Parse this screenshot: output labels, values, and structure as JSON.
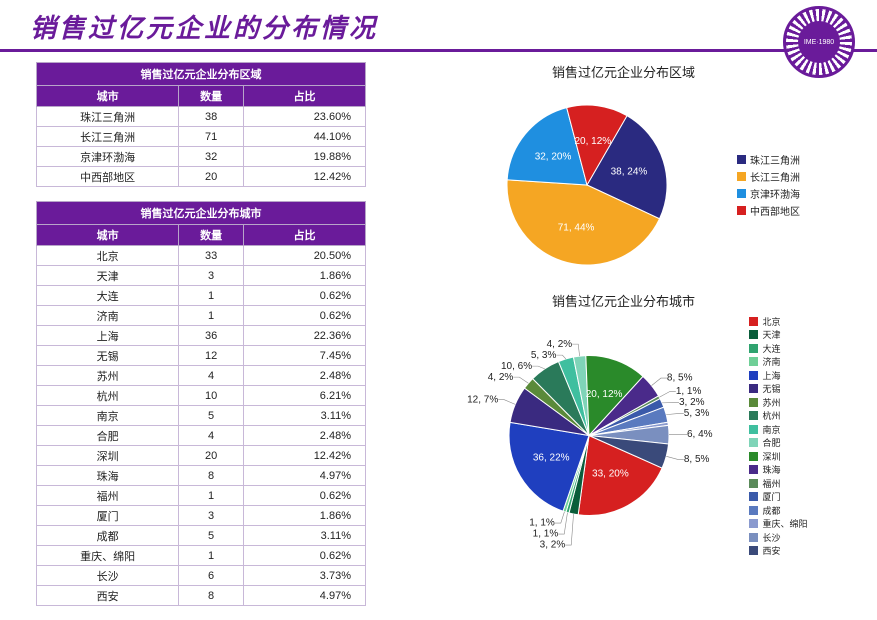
{
  "title": "销售过亿元企业的分布情况",
  "colors": {
    "brand": "#6a1b9a",
    "border": "#b8a5c9"
  },
  "table1": {
    "caption": "销售过亿元企业分布区域",
    "columns": [
      "城市",
      "数量",
      "占比"
    ],
    "rows": [
      [
        "珠江三角洲",
        "38",
        "23.60%"
      ],
      [
        "长江三角洲",
        "71",
        "44.10%"
      ],
      [
        "京津环渤海",
        "32",
        "19.88%"
      ],
      [
        "中西部地区",
        "20",
        "12.42%"
      ]
    ]
  },
  "table2": {
    "caption": "销售过亿元企业分布城市",
    "columns": [
      "城市",
      "数量",
      "占比"
    ],
    "rows": [
      [
        "北京",
        "33",
        "20.50%"
      ],
      [
        "天津",
        "3",
        "1.86%"
      ],
      [
        "大连",
        "1",
        "0.62%"
      ],
      [
        "济南",
        "1",
        "0.62%"
      ],
      [
        "上海",
        "36",
        "22.36%"
      ],
      [
        "无锡",
        "12",
        "7.45%"
      ],
      [
        "苏州",
        "4",
        "2.48%"
      ],
      [
        "杭州",
        "10",
        "6.21%"
      ],
      [
        "南京",
        "5",
        "3.11%"
      ],
      [
        "合肥",
        "4",
        "2.48%"
      ],
      [
        "深圳",
        "20",
        "12.42%"
      ],
      [
        "珠海",
        "8",
        "4.97%"
      ],
      [
        "福州",
        "1",
        "0.62%"
      ],
      [
        "厦门",
        "3",
        "1.86%"
      ],
      [
        "成都",
        "5",
        "3.11%"
      ],
      [
        "重庆、绵阳",
        "1",
        "0.62%"
      ],
      [
        "长沙",
        "6",
        "3.73%"
      ],
      [
        "西安",
        "8",
        "4.97%"
      ]
    ]
  },
  "chart1": {
    "type": "pie",
    "title": "销售过亿元企业分布区域",
    "radius": 80,
    "startAngle": -60,
    "slices": [
      {
        "label": "珠江三角洲",
        "value": 38,
        "pctLabel": "38, 24%",
        "color": "#2a2a80",
        "labelInside": true
      },
      {
        "label": "长江三角洲",
        "value": 71,
        "pctLabel": "71, 44%",
        "color": "#f5a623",
        "labelInside": true
      },
      {
        "label": "京津环渤海",
        "value": 32,
        "pctLabel": "32, 20%",
        "color": "#1f8fe0",
        "labelInside": true
      },
      {
        "label": "中西部地区",
        "value": 20,
        "pctLabel": "20, 12%",
        "color": "#d62020",
        "labelInside": true
      }
    ],
    "legendSwatch": "square"
  },
  "chart2": {
    "type": "pie",
    "title": "销售过亿元企业分布城市",
    "radius": 80,
    "startAngle": 24,
    "slices": [
      {
        "label": "北京",
        "value": 33,
        "pctLabel": "33, 20%",
        "color": "#d62020",
        "labelInside": true
      },
      {
        "label": "天津",
        "value": 3,
        "pctLabel": "3, 2%",
        "color": "#0a5d3a"
      },
      {
        "label": "大连",
        "value": 1,
        "pctLabel": "1, 1%",
        "color": "#2fa36f"
      },
      {
        "label": "济南",
        "value": 1,
        "pctLabel": "1, 1%",
        "color": "#6fcf97"
      },
      {
        "label": "上海",
        "value": 36,
        "pctLabel": "36, 22%",
        "color": "#1f3fbf",
        "labelInside": true
      },
      {
        "label": "无锡",
        "value": 12,
        "pctLabel": "12, 7%",
        "color": "#3a2a80"
      },
      {
        "label": "苏州",
        "value": 4,
        "pctLabel": "4, 2%",
        "color": "#5a8a3a"
      },
      {
        "label": "杭州",
        "value": 10,
        "pctLabel": "10, 6%",
        "color": "#2a7a5a"
      },
      {
        "label": "南京",
        "value": 5,
        "pctLabel": "5, 3%",
        "color": "#3fbf9f"
      },
      {
        "label": "合肥",
        "value": 4,
        "pctLabel": "4, 2%",
        "color": "#7fd4b8"
      },
      {
        "label": "深圳",
        "value": 20,
        "pctLabel": "20, 12%",
        "color": "#2a8a2a",
        "labelInside": true
      },
      {
        "label": "珠海",
        "value": 8,
        "pctLabel": "8, 5%",
        "color": "#4a2a8a"
      },
      {
        "label": "福州",
        "value": 1,
        "pctLabel": "1, 1%",
        "color": "#5a8a5a"
      },
      {
        "label": "厦门",
        "value": 3,
        "pctLabel": "3, 2%",
        "color": "#3a5aaa"
      },
      {
        "label": "成都",
        "value": 5,
        "pctLabel": "5, 3%",
        "color": "#5a7abf"
      },
      {
        "label": "重庆、绵阳",
        "value": 1,
        "pctLabel": "",
        "color": "#8a9acf"
      },
      {
        "label": "长沙",
        "value": 6,
        "pctLabel": "6, 4%",
        "color": "#7a8fbf"
      },
      {
        "label": "西安",
        "value": 8,
        "pctLabel": "8, 5%",
        "color": "#3a4a7a"
      }
    ],
    "legendSwatch": "square"
  }
}
